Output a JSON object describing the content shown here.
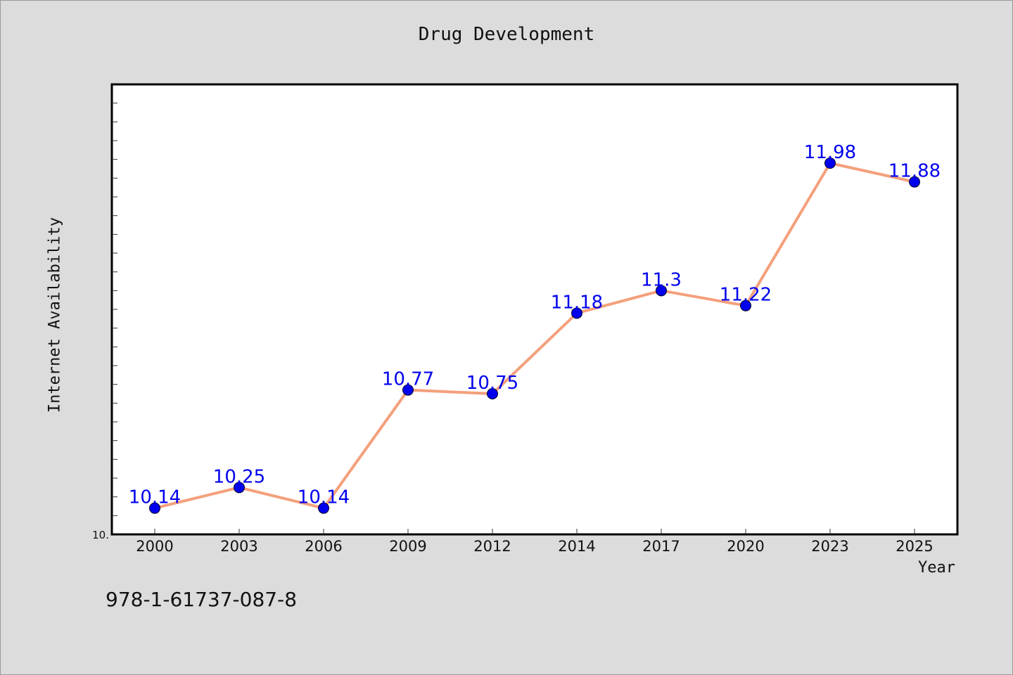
{
  "chart_data": {
    "type": "line",
    "title": "Drug Development",
    "xlabel": "Year",
    "ylabel": "Internet Availability",
    "categories": [
      "2000",
      "2003",
      "2006",
      "2009",
      "2012",
      "2014",
      "2017",
      "2020",
      "2023",
      "2025"
    ],
    "series": [
      {
        "values": [
          10.14,
          10.25,
          10.14,
          10.77,
          10.75,
          11.18,
          11.3,
          11.22,
          11.98,
          11.88
        ],
        "labels": [
          "10.14",
          "10.25",
          "10.14",
          "10.77",
          "10.75",
          "11.18",
          "11.3",
          "11.22",
          "11.98",
          "11.88"
        ],
        "line_color": "#f4a07c",
        "marker_color": "#0000ee"
      }
    ],
    "y_min_label": "10.",
    "ylim": [
      10.0,
      12.4
    ],
    "grid": false,
    "data_label_color": "#0000ee"
  },
  "footer": {
    "code": "978-1-61737-087-8"
  },
  "colors": {
    "background": "#dcdcdc",
    "plot_background": "#ffffff",
    "axis": "#000000"
  }
}
